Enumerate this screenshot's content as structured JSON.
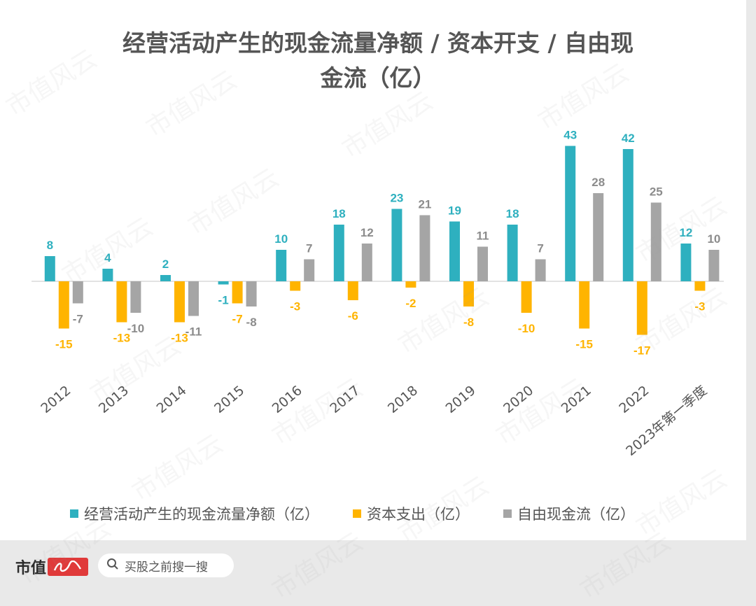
{
  "chart_data": {
    "type": "bar",
    "title_line1": "经营活动产生的现金流量净额 / 资本开支 / 自由现",
    "title_line2": "金流（亿）",
    "categories": [
      "2012",
      "2013",
      "2014",
      "2015",
      "2016",
      "2017",
      "2018",
      "2019",
      "2020",
      "2021",
      "2022",
      "2023年第一季度"
    ],
    "series": [
      {
        "name": "经营活动产生的现金流量净额（亿）",
        "color": "#2eb0bf",
        "values": [
          8,
          4,
          2,
          -1,
          10,
          18,
          23,
          19,
          18,
          43,
          42,
          12
        ]
      },
      {
        "name": "资本支出（亿）",
        "color": "#ffb400",
        "values": [
          -15,
          -13,
          -13,
          -7,
          -3,
          -6,
          -2,
          -8,
          -10,
          -15,
          -17,
          -3
        ]
      },
      {
        "name": "自由现金流（亿）",
        "color": "#a5a5a5",
        "values": [
          -7,
          -10,
          -11,
          -8,
          7,
          12,
          21,
          11,
          7,
          28,
          25,
          10
        ]
      }
    ],
    "grid": false,
    "legend_position": "bottom"
  },
  "label_colors": {
    "series0": "#2eb0bf",
    "series1": "#ffb400",
    "series2": "#8c8c8c"
  },
  "watermark": "市值风云",
  "footer": {
    "brand": "市值",
    "search_placeholder": "买股之前搜一搜"
  }
}
